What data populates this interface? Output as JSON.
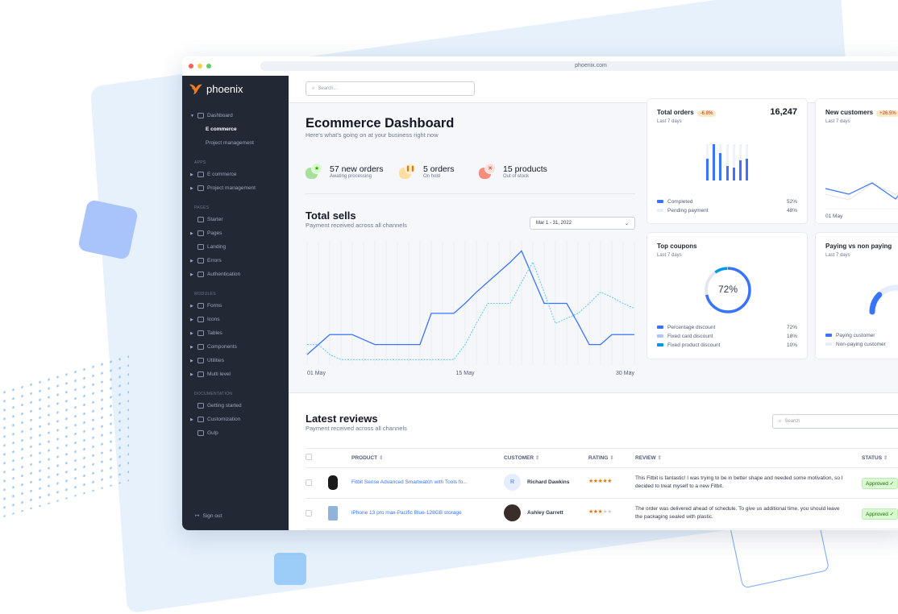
{
  "browser": {
    "url": "phoenix.com"
  },
  "colors": {
    "sidebar": "#222834",
    "primary": "#3874ff",
    "secondary": "#60c6ff",
    "warning_badge": "#ffe6c7",
    "success_badge": "#d9fbd0"
  },
  "sidebar": {
    "brand": "phoenix",
    "dashboard": {
      "label": "Dashboard",
      "children": [
        "E commerce",
        "Project management"
      ]
    },
    "sections": [
      {
        "title": "APPS",
        "items": [
          {
            "label": "E commerce",
            "icon": "cart-icon"
          },
          {
            "label": "Project management",
            "icon": "clipboard-icon"
          }
        ]
      },
      {
        "title": "PAGES",
        "items": [
          {
            "label": "Starter",
            "icon": "compass-icon"
          },
          {
            "label": "Pages",
            "icon": "layout-icon"
          },
          {
            "label": "Landing",
            "icon": "monitor-icon"
          },
          {
            "label": "Errors",
            "icon": "alert-triangle-icon"
          },
          {
            "label": "Authentication",
            "icon": "lock-icon"
          }
        ]
      },
      {
        "title": "MODULES",
        "items": [
          {
            "label": "Forms",
            "icon": "file-text-icon"
          },
          {
            "label": "Icons",
            "icon": "grid-icon"
          },
          {
            "label": "Tables",
            "icon": "columns-icon"
          },
          {
            "label": "Components",
            "icon": "package-icon"
          },
          {
            "label": "Utilities",
            "icon": "tool-icon"
          },
          {
            "label": "Multi level",
            "icon": "layers-icon"
          }
        ]
      },
      {
        "title": "DOCUMENTATION",
        "items": [
          {
            "label": "Getting started",
            "icon": "life-buoy-icon"
          },
          {
            "label": "Customization",
            "icon": "settings-icon"
          },
          {
            "label": "Gulp",
            "icon": "gulp-icon"
          }
        ]
      }
    ],
    "sign_out": "Sign out"
  },
  "topbar": {
    "search_placeholder": "Search..."
  },
  "header": {
    "title": "Ecommerce Dashboard",
    "subtitle": "Here's what's going on at your business right now"
  },
  "stats": [
    {
      "title": "57 new orders",
      "subtitle": "Awating processing",
      "icon": "star-icon",
      "color": "#25b003"
    },
    {
      "title": "5 orders",
      "subtitle": "On hold",
      "icon": "pause-icon",
      "color": "#e5780b"
    },
    {
      "title": "15 products",
      "subtitle": "Out of stock",
      "icon": "x-icon",
      "color": "#ec1f00"
    }
  ],
  "total_sells": {
    "title": "Total sells",
    "subtitle": "Payment received across all channels",
    "date_range": "Mar 1 - 31, 2022"
  },
  "chart_data": {
    "type": "line",
    "title": "Total sells",
    "x_tick_labels": [
      "01 May",
      "15 May",
      "30 May"
    ],
    "x": [
      1,
      2,
      3,
      4,
      5,
      6,
      7,
      8,
      9,
      10,
      11,
      12,
      13,
      14,
      15,
      16,
      17,
      18,
      19,
      20,
      21,
      22,
      23,
      24,
      25,
      26,
      27,
      28,
      29,
      30
    ],
    "grid": "vertical",
    "series": [
      {
        "style": "solid",
        "color": "#3874ff",
        "values": [
          9,
          17,
          25,
          25,
          25,
          21,
          17,
          17,
          17,
          17,
          17,
          42,
          42,
          42,
          50,
          59,
          67,
          75,
          83,
          92,
          71,
          50,
          50,
          50,
          34,
          17,
          17,
          25,
          25,
          25
        ]
      },
      {
        "style": "dashed",
        "color": "#60c6ff",
        "values": [
          17,
          17,
          9,
          5,
          5,
          5,
          5,
          5,
          5,
          5,
          5,
          5,
          5,
          5,
          17,
          34,
          50,
          50,
          50,
          67,
          83,
          59,
          34,
          38,
          42,
          50,
          59,
          55,
          50,
          46
        ]
      }
    ],
    "ylim": [
      0,
      100
    ]
  },
  "cards": {
    "total_orders": {
      "title": "Total orders",
      "badge": "-6.8%",
      "value": "16,247",
      "period": "Last 7 days",
      "bars": [
        60,
        100,
        76,
        40,
        36,
        56,
        60
      ],
      "legend": [
        {
          "label": "Completed",
          "value": "52%",
          "color": "#3874ff"
        },
        {
          "label": "Pending payment",
          "value": "48%",
          "color": "#e5edff"
        }
      ]
    },
    "new_customers": {
      "title": "New customers",
      "badge": "+26.5%",
      "period": "Last 7 days",
      "x_label": "01 May"
    },
    "top_coupons": {
      "title": "Top coupons",
      "period": "Last 7 days",
      "center": "72%",
      "legend": [
        {
          "label": "Percentage discount",
          "value": "72%",
          "color": "#3874ff",
          "pct": 72
        },
        {
          "label": "Fixed card discount",
          "value": "18%",
          "color": "#adc5fe",
          "pct": 18
        },
        {
          "label": "Fixed product discount",
          "value": "10%",
          "color": "#0097eb",
          "pct": 10
        }
      ]
    },
    "paying": {
      "title": "Paying vs non paying",
      "period": "Last 7 days",
      "paying_pct": 30,
      "legend": [
        {
          "label": "Paying customer",
          "color": "#3874ff"
        },
        {
          "label": "Non-paying customer",
          "color": "#e5edff"
        }
      ]
    }
  },
  "reviews": {
    "title": "Latest reviews",
    "subtitle": "Payment received across all channels",
    "search_placeholder": "Search",
    "columns": [
      "PRODUCT",
      "CUSTOMER",
      "RATING",
      "REVIEW",
      "STATUS"
    ],
    "rows": [
      {
        "product": "Fitbit Sense Advanced Smartwatch with Tools fo...",
        "customer": "Richard Dawkins",
        "initial": "R",
        "rating": 5,
        "review": "This Fitbit is fantastic! I was trying to be in better shape and needed some motivation, so I decided to treat myself to a new Fitbit.",
        "status": "Approved"
      },
      {
        "product": "iPhone 13 pro max-Pacific Blue-128GB storage",
        "customer": "Ashley Garrett",
        "rating": 3,
        "review": "The order was delivered ahead of schedule. To give us additional time, you should leave the packaging sealed with plastic.",
        "status": "Approved"
      }
    ]
  }
}
